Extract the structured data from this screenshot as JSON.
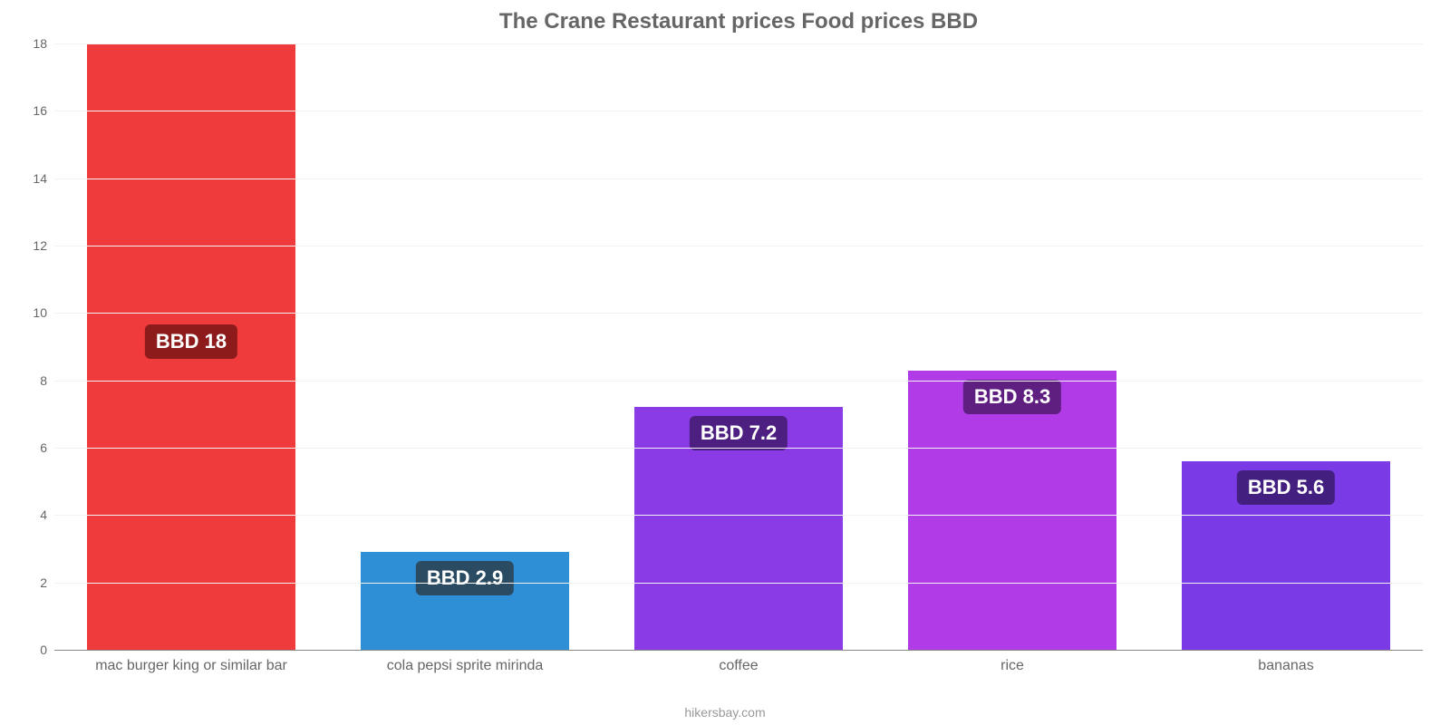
{
  "chart": {
    "type": "bar",
    "title": "The Crane Restaurant prices Food prices BBD",
    "title_fontsize": 24,
    "title_color": "#666666",
    "attribution": "hikersbay.com",
    "background_color": "#ffffff",
    "grid_color": "#f2f2f2",
    "axis_color": "#888888",
    "tick_label_color": "#666666",
    "tick_fontsize": 14,
    "xlabel_fontsize": 16,
    "ylim": [
      0,
      18
    ],
    "ytick_step": 2,
    "yticks": [
      0,
      2,
      4,
      6,
      8,
      10,
      12,
      14,
      16,
      18
    ],
    "bar_width_pct": 76,
    "value_label_fontsize": 22,
    "bars": [
      {
        "category": "mac burger king or similar bar",
        "value": 18,
        "label": "BBD 18",
        "color": "#ef3b3b",
        "label_bg": "#8e1b1b"
      },
      {
        "category": "cola pepsi sprite mirinda",
        "value": 2.9,
        "label": "BBD 2.9",
        "color": "#2f8fd6",
        "label_bg": "#2a4b61"
      },
      {
        "category": "coffee",
        "value": 7.2,
        "label": "BBD 7.2",
        "color": "#8b3be6",
        "label_bg": "#4d1f80"
      },
      {
        "category": "rice",
        "value": 8.3,
        "label": "BBD 8.3",
        "color": "#b13be6",
        "label_bg": "#5f1f80"
      },
      {
        "category": "bananas",
        "value": 5.6,
        "label": "BBD 5.6",
        "color": "#7a3be6",
        "label_bg": "#431f80"
      }
    ]
  }
}
